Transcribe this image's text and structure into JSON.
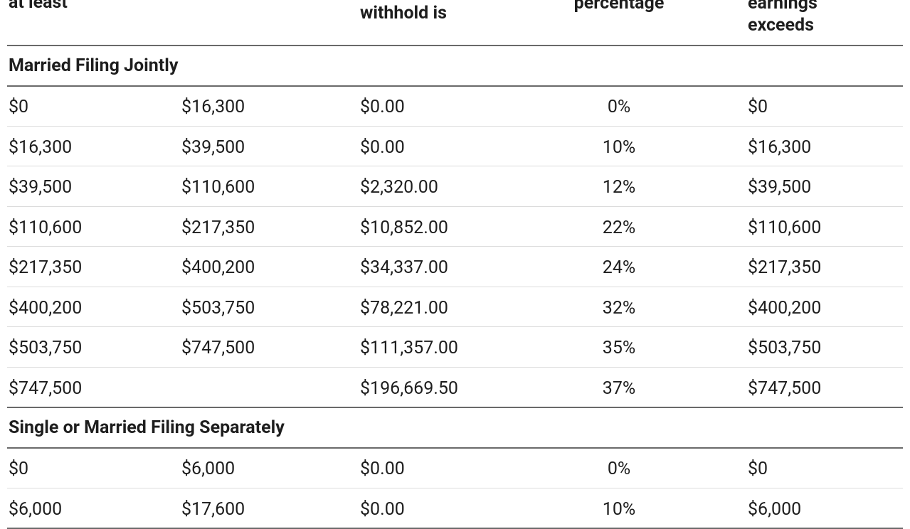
{
  "header": {
    "col1": [
      "at least"
    ],
    "col3": [
      "withhold is"
    ],
    "col4": [
      "percentage"
    ],
    "col5": [
      "earnings",
      "exceeds"
    ]
  },
  "sections": [
    {
      "title": "Married Filing Jointly",
      "rows": [
        [
          "$0",
          "$16,300",
          "$0.00",
          "0%",
          "$0"
        ],
        [
          "$16,300",
          "$39,500",
          "$0.00",
          "10%",
          "$16,300"
        ],
        [
          "$39,500",
          "$110,600",
          "$2,320.00",
          "12%",
          "$39,500"
        ],
        [
          "$110,600",
          "$217,350",
          "$10,852.00",
          "22%",
          "$110,600"
        ],
        [
          "$217,350",
          "$400,200",
          "$34,337.00",
          "24%",
          "$217,350"
        ],
        [
          "$400,200",
          "$503,750",
          "$78,221.00",
          "32%",
          "$400,200"
        ],
        [
          "$503,750",
          "$747,500",
          "$111,357.00",
          "35%",
          "$503,750"
        ],
        [
          "$747,500",
          null,
          "$196,669.50",
          "37%",
          "$747,500"
        ]
      ]
    },
    {
      "title": "Single or Married Filing Separately",
      "rows": [
        [
          "$0",
          "$6,000",
          "$0.00",
          "0%",
          "$0"
        ],
        [
          "$6,000",
          "$17,600",
          "$0.00",
          "10%",
          "$6,000"
        ]
      ]
    }
  ]
}
